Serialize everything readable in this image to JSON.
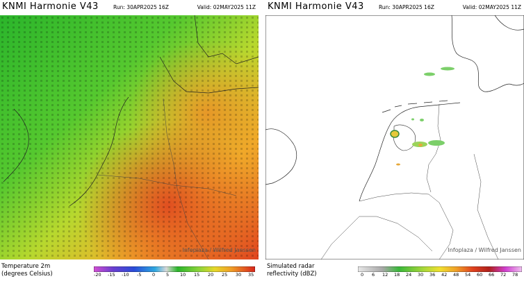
{
  "left_panel": {
    "title": "KNMI Harmonie V43",
    "run": "Run: 30APR2025 16Z",
    "valid": "Valid: 02MAY2025 11Z",
    "legend_line1": "Temperature 2m",
    "legend_line2": "(degrees Celsius)",
    "colorbar_ticks": [
      "-20",
      "-15",
      "-10",
      "-5",
      "0",
      "5",
      "10",
      "15",
      "20",
      "25",
      "30",
      "35"
    ],
    "credit": "Infoplaza / Wilfred Janssen"
  },
  "right_panel": {
    "title": "KNMI Harmonie V43",
    "run": "Run: 30APR2025 16Z",
    "valid": "Valid: 02MAY2025 11Z",
    "legend_line1": "Simulated radar",
    "legend_line2": "reflectivity (dBZ)",
    "colorbar_ticks": [
      "0",
      "6",
      "12",
      "18",
      "24",
      "30",
      "36",
      "42",
      "48",
      "54",
      "60",
      "66",
      "72",
      "78"
    ],
    "credit": "Infoplaza / Wilfred Janssen"
  },
  "colors": {
    "temp_cool": "#2bb52b",
    "temp_mild": "#7fd336",
    "temp_warm": "#d6d32a",
    "temp_hot": "#f08a26",
    "temp_very_hot": "#e0431f",
    "radar_light": "#7ccf6a",
    "radar_moderate": "#e6c83a",
    "radar_heavy": "#e03a25",
    "coastline": "#222222",
    "border": "#444444"
  }
}
